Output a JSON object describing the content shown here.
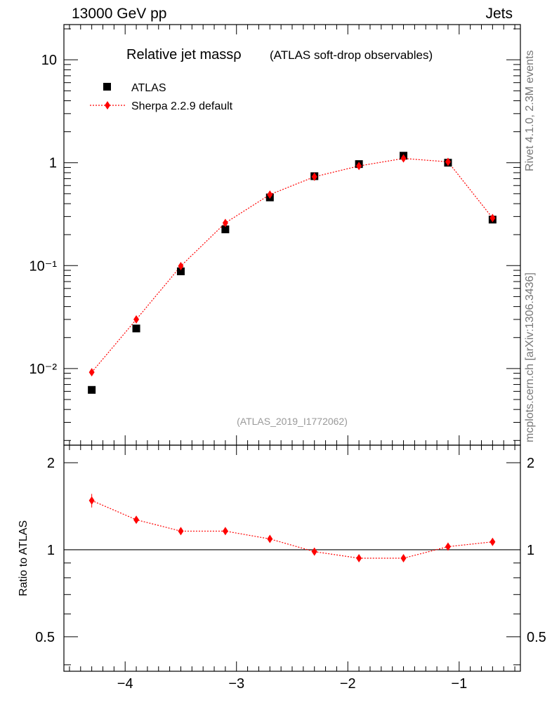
{
  "header": {
    "left": "13000 GeV pp",
    "right": "Jets"
  },
  "sidebar": {
    "rivet": "Rivet 4.1.0,  2.3M events",
    "mcplots": "mcplots.cern.ch [arXiv:1306.3436]"
  },
  "chart_data": [
    {
      "type": "scatter",
      "panel": "main",
      "title_main": "Relative jet massρ",
      "title_sub": "(ATLAS soft-drop observables)",
      "analysis": "(ATLAS_2019_I1772062)",
      "yscale": "log",
      "xlim": [
        -4.55,
        -0.45
      ],
      "ylim": [
        0.0018,
        22
      ],
      "x": [
        -4.3,
        -3.9,
        -3.5,
        -3.1,
        -2.7,
        -2.3,
        -1.9,
        -1.5,
        -1.1,
        -0.7
      ],
      "ytick_labels": [
        "10",
        "1",
        "10⁻¹",
        "10⁻²"
      ],
      "series": [
        {
          "name": "ATLAS",
          "marker": "square",
          "color": "#000000",
          "values": [
            0.0062,
            0.0245,
            0.088,
            0.225,
            0.46,
            0.74,
            0.97,
            1.17,
            1.0,
            0.28
          ]
        },
        {
          "name": "Sherpa 2.2.9 default",
          "marker": "diamond",
          "color": "#ff0000",
          "line": "dotted",
          "values": [
            0.0092,
            0.03,
            0.099,
            0.26,
            0.49,
            0.73,
            0.93,
            1.1,
            1.02,
            0.29
          ]
        }
      ],
      "legend": "top-left"
    },
    {
      "type": "scatter",
      "panel": "ratio",
      "ylabel": "Ratio to ATLAS",
      "xlim": [
        -4.55,
        -0.45
      ],
      "ylim": [
        0.38,
        2.3
      ],
      "yscale": "log",
      "reference": 1.0,
      "x": [
        -4.3,
        -3.9,
        -3.5,
        -3.1,
        -2.7,
        -2.3,
        -1.9,
        -1.5,
        -1.1,
        -0.7
      ],
      "values": [
        1.48,
        1.27,
        1.16,
        1.16,
        1.09,
        0.985,
        0.935,
        0.935,
        1.025,
        1.065
      ],
      "errors": [
        0.08,
        0.03,
        0.02,
        0.015,
        0.012,
        0.01,
        0.01,
        0.01,
        0.012,
        0.015
      ],
      "color": "#ff0000",
      "ytick_labels": [
        "2",
        "1",
        "0.5"
      ],
      "xtick_labels": [
        "−4",
        "−3",
        "−2",
        "−1"
      ]
    }
  ]
}
